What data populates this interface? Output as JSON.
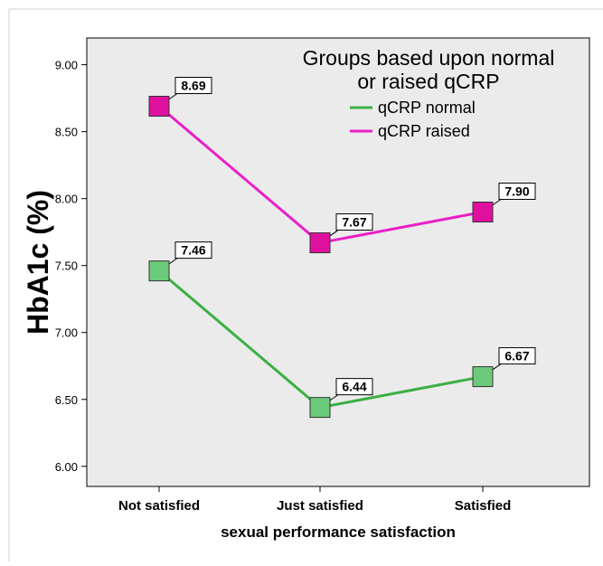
{
  "chart_data": {
    "type": "line",
    "xlabel": "sexual performance satisfaction",
    "ylabel": "HbA1c (%)",
    "categories": [
      "Not satisfied",
      "Just satisfied",
      "Satisfied"
    ],
    "ylim": [
      5.85,
      9.2
    ],
    "yticks": [
      6.0,
      6.5,
      7.0,
      7.5,
      8.0,
      8.5,
      9.0
    ],
    "grid": false,
    "legend": {
      "title_line1": "Groups based upon normal",
      "title_line2": "or raised qCRP",
      "placement": "top-right"
    },
    "series": [
      {
        "name": "qCRP normal",
        "color": "#3cb043",
        "marker_fill": "#6ccb7a",
        "values": [
          7.46,
          6.44,
          6.67
        ],
        "labels": [
          "7.46",
          "6.44",
          "6.67"
        ]
      },
      {
        "name": "qCRP raised",
        "color": "#ea1fc8",
        "marker_fill": "#e0109f",
        "values": [
          8.69,
          7.67,
          7.9
        ],
        "labels": [
          "8.69",
          "7.67",
          "7.90"
        ]
      }
    ],
    "plot_background": "#ebebeb"
  }
}
